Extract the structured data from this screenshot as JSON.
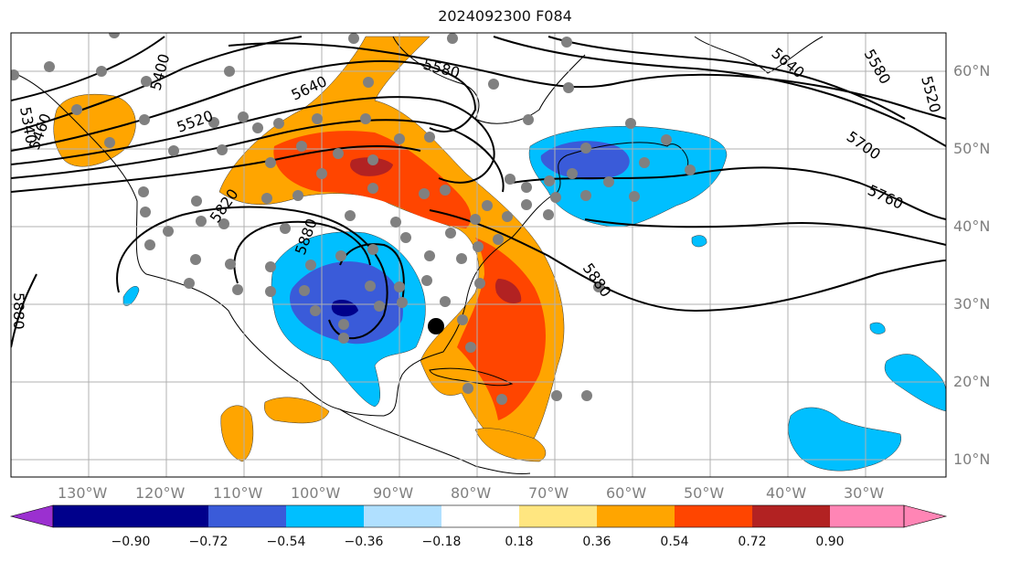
{
  "title": "2024092300 F084",
  "axes": {
    "lon_labels": [
      "130°W",
      "120°W",
      "110°W",
      "100°W",
      "90°W",
      "80°W",
      "70°W",
      "60°W",
      "50°W",
      "40°W",
      "30°W"
    ],
    "lat_labels": [
      "60°N",
      "50°N",
      "40°N",
      "30°N",
      "20°N",
      "10°N"
    ]
  },
  "contours": {
    "labels": [
      "5340",
      "5400",
      "5460",
      "5520",
      "5580",
      "5640",
      "5580",
      "5520",
      "5640",
      "5700",
      "5760",
      "5820",
      "5880",
      "5880",
      "5880"
    ]
  },
  "colorbar": {
    "ticks": [
      "−0.90",
      "−0.72",
      "−0.54",
      "−0.36",
      "−0.18",
      "0.18",
      "0.36",
      "0.54",
      "0.72",
      "0.90"
    ],
    "colors": [
      "#9b30d0",
      "#00008b",
      "#3a5bd9",
      "#00bfff",
      "#b0e0ff",
      "#ffffff",
      "#ffe680",
      "#ffa500",
      "#ff4500",
      "#b22222",
      "#ff85b5"
    ]
  },
  "fill_colors": {
    "orange": "#ffa500",
    "red": "#ff4500",
    "darkred": "#b22222",
    "lightblue": "#00bfff",
    "blue": "#3a5bd9",
    "navy": "#00008b"
  },
  "marker_color": "#808080"
}
